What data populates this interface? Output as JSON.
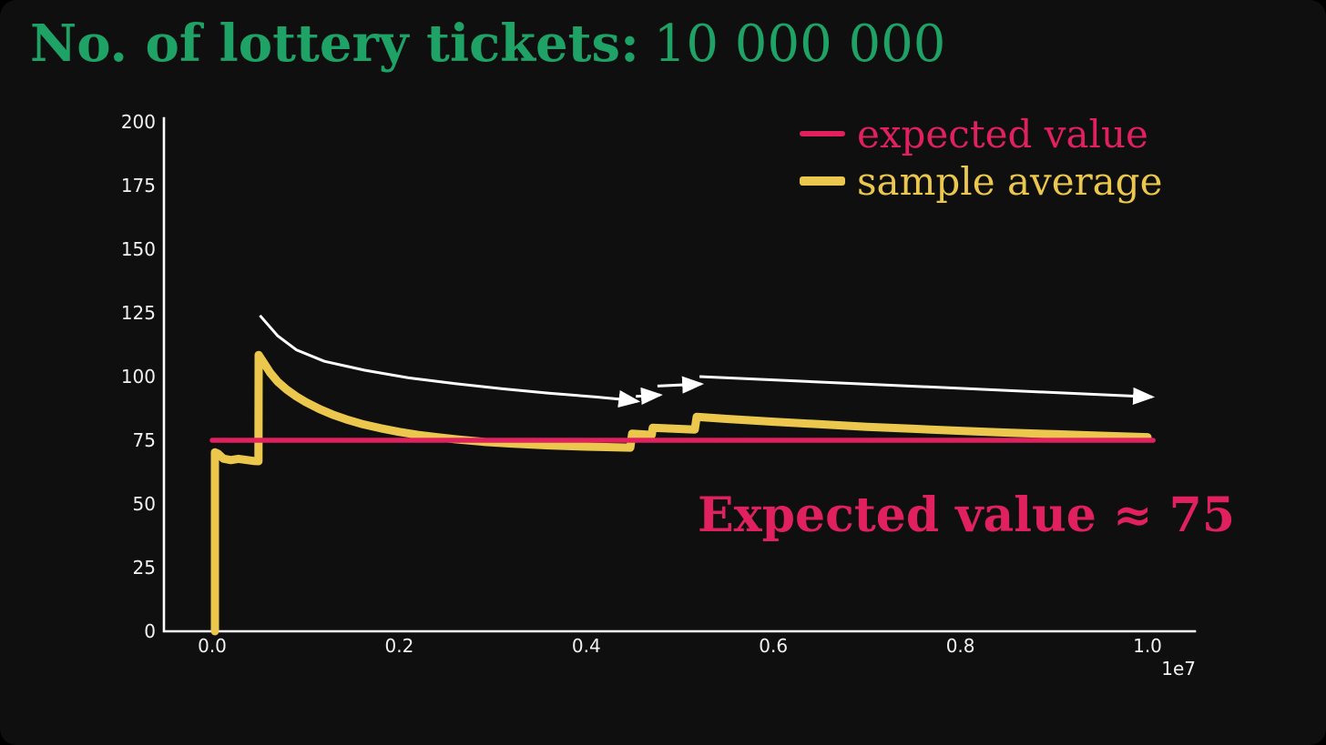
{
  "title": {
    "label": "No. of lottery tickets:",
    "value": "10 000 000"
  },
  "legend": {
    "items": [
      {
        "label": "expected value",
        "color": "#e1215f"
      },
      {
        "label": "sample average",
        "color": "#ebc84d"
      }
    ]
  },
  "annotation": {
    "text": "Expected value ≈ 75",
    "color": "#e1215f"
  },
  "colors": {
    "background": "#0f0f0f",
    "title_green": "#1fa266",
    "pink": "#e1215f",
    "yellow": "#ebc84d",
    "axis": "#ffffff",
    "arrow": "#ffffff"
  },
  "chart_data": {
    "type": "line",
    "title": "No. of lottery tickets: 10 000 000",
    "xlabel": "",
    "ylabel": "",
    "xlim": [
      0,
      10000000
    ],
    "ylim": [
      0,
      200
    ],
    "x_offset_label": "1e7",
    "grid": false,
    "legend_position": "upper right",
    "xticks": [
      {
        "value": 0,
        "label": "0.0"
      },
      {
        "value": 2000000,
        "label": "0.2"
      },
      {
        "value": 4000000,
        "label": "0.4"
      },
      {
        "value": 6000000,
        "label": "0.6"
      },
      {
        "value": 8000000,
        "label": "0.8"
      },
      {
        "value": 10000000,
        "label": "1.0"
      }
    ],
    "yticks": [
      {
        "value": 0,
        "label": "0"
      },
      {
        "value": 25,
        "label": "25"
      },
      {
        "value": 50,
        "label": "50"
      },
      {
        "value": 75,
        "label": "75"
      },
      {
        "value": 100,
        "label": "100"
      },
      {
        "value": 125,
        "label": "125"
      },
      {
        "value": 150,
        "label": "150"
      },
      {
        "value": 175,
        "label": "175"
      },
      {
        "value": 200,
        "label": "200"
      }
    ],
    "series": [
      {
        "name": "sample average",
        "color": "#ebc84d",
        "width": 9,
        "points": [
          [
            29000,
            0
          ],
          [
            29000,
            70.3
          ],
          [
            60000,
            69.8
          ],
          [
            120000,
            67.8
          ],
          [
            200000,
            67.2
          ],
          [
            280000,
            67.7
          ],
          [
            360000,
            67.3
          ],
          [
            440000,
            66.9
          ],
          [
            495000,
            66.8
          ],
          [
            497000,
            108.5
          ],
          [
            550000,
            105.5
          ],
          [
            620000,
            101.5
          ],
          [
            700000,
            98
          ],
          [
            800000,
            94.8
          ],
          [
            900000,
            92.2
          ],
          [
            1000000,
            90
          ],
          [
            1150000,
            87.2
          ],
          [
            1300000,
            84.9
          ],
          [
            1450000,
            83
          ],
          [
            1600000,
            81.4
          ],
          [
            1800000,
            79.7
          ],
          [
            2000000,
            78.3
          ],
          [
            2200000,
            77.1
          ],
          [
            2400000,
            76.2
          ],
          [
            2600000,
            75.4
          ],
          [
            2900000,
            74.4
          ],
          [
            3200000,
            73.7
          ],
          [
            3600000,
            73
          ],
          [
            4000000,
            72.5
          ],
          [
            4470000,
            72.1
          ],
          [
            4490000,
            77.6
          ],
          [
            4700000,
            77.1
          ],
          [
            4710000,
            79.9
          ],
          [
            5160000,
            79.2
          ],
          [
            5180000,
            84.2
          ],
          [
            5500000,
            83.4
          ],
          [
            6000000,
            82.3
          ],
          [
            6500000,
            81.3
          ],
          [
            7000000,
            80.3
          ],
          [
            7500000,
            79.5
          ],
          [
            8000000,
            78.7
          ],
          [
            8500000,
            78
          ],
          [
            9000000,
            77.4
          ],
          [
            9500000,
            76.8
          ],
          [
            10000000,
            76.2
          ]
        ]
      },
      {
        "name": "expected value",
        "color": "#e1215f",
        "width": 5.5,
        "points": [
          [
            0,
            75
          ],
          [
            10060000,
            75
          ]
        ]
      }
    ],
    "arrows": [
      {
        "name": "decay-arrow-1",
        "points": [
          [
            510000,
            124
          ],
          [
            700000,
            116
          ],
          [
            900000,
            110.5
          ],
          [
            1200000,
            106
          ],
          [
            1630000,
            102.5
          ],
          [
            2100000,
            99.5
          ],
          [
            2600000,
            97.2
          ],
          [
            3100000,
            95.2
          ],
          [
            3600000,
            93.5
          ],
          [
            4100000,
            92
          ],
          [
            4400000,
            91
          ],
          [
            4550000,
            90.3
          ]
        ]
      },
      {
        "name": "step-arrow-1",
        "points": [
          [
            4530000,
            92.2
          ],
          [
            4790000,
            92.8
          ]
        ]
      },
      {
        "name": "step-arrow-2",
        "points": [
          [
            4760000,
            96.3
          ],
          [
            5230000,
            97.1
          ]
        ]
      },
      {
        "name": "decay-arrow-2",
        "points": [
          [
            5210000,
            100
          ],
          [
            10050000,
            92
          ]
        ]
      }
    ]
  }
}
